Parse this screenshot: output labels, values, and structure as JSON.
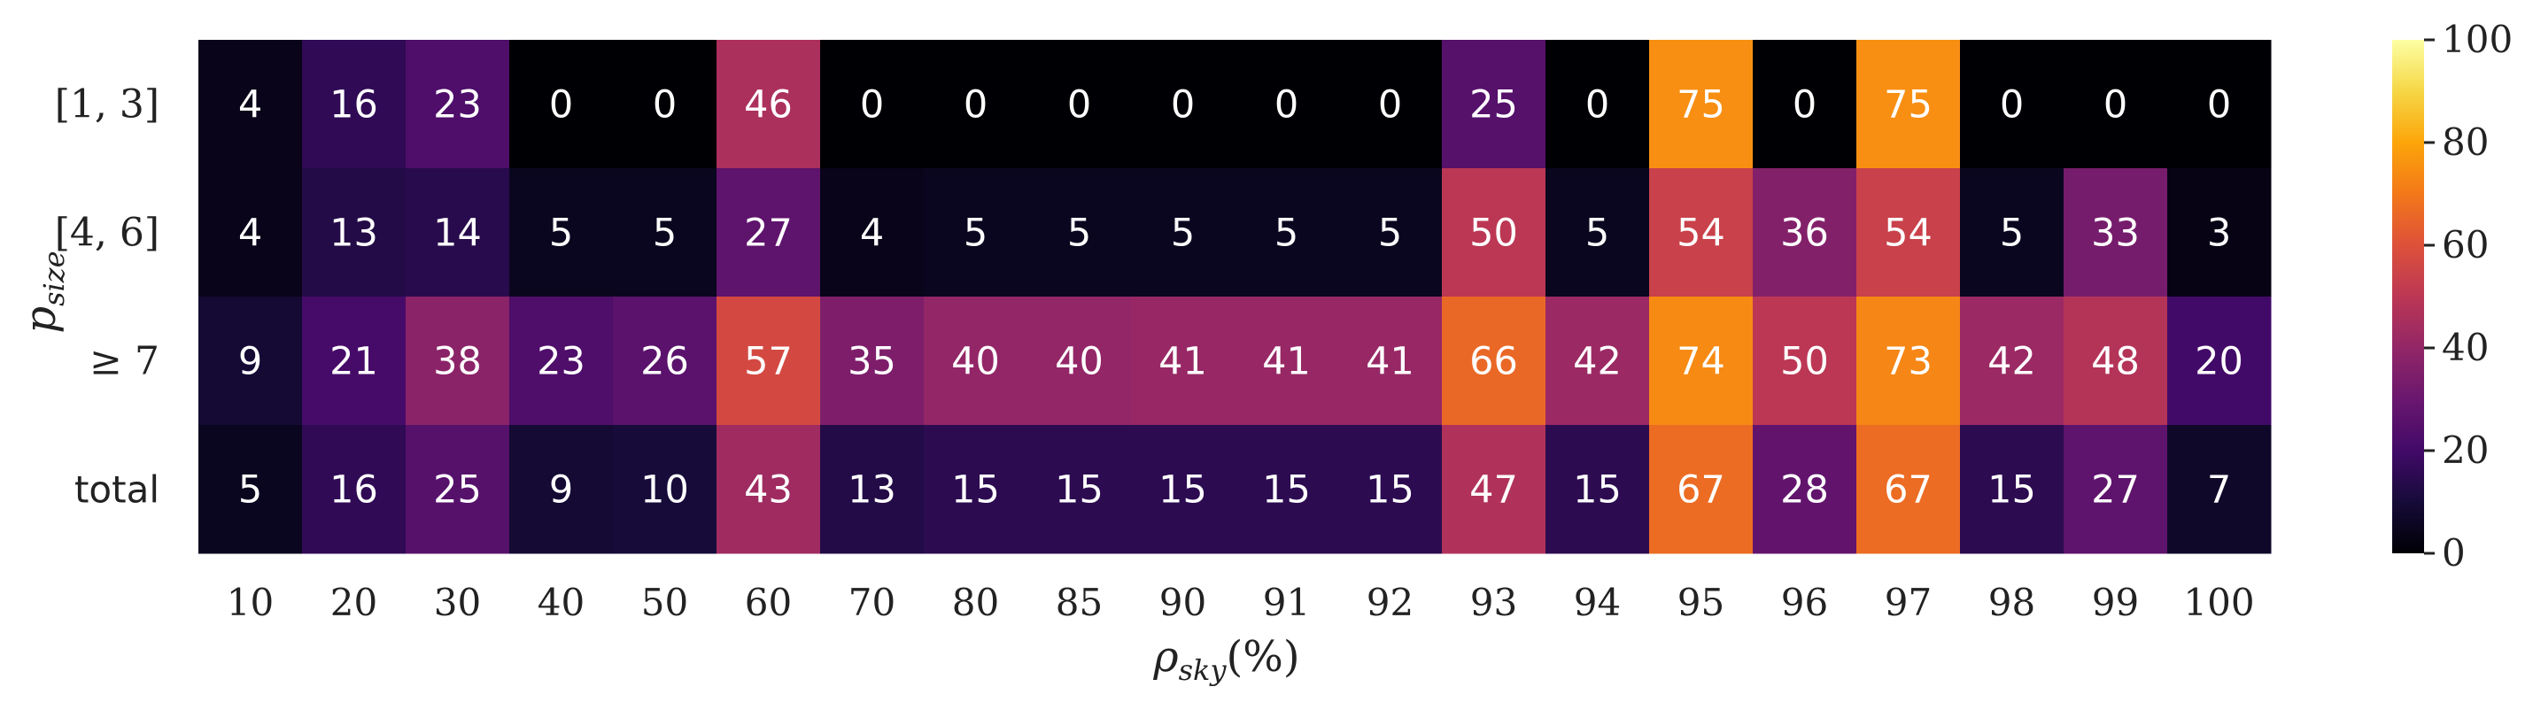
{
  "chart_data": {
    "type": "heatmap",
    "title": "",
    "xlabel": "ρ_sky(%)",
    "ylabel": "p_size",
    "x_categories": [
      "10",
      "20",
      "30",
      "40",
      "50",
      "60",
      "70",
      "80",
      "85",
      "90",
      "91",
      "92",
      "93",
      "94",
      "95",
      "96",
      "97",
      "98",
      "99",
      "100"
    ],
    "y_categories": [
      "[1, 3]",
      "[4, 6]",
      "≥ 7",
      "total"
    ],
    "values": [
      [
        4,
        16,
        23,
        0,
        0,
        46,
        0,
        0,
        0,
        0,
        0,
        0,
        25,
        0,
        75,
        0,
        75,
        0,
        0,
        0
      ],
      [
        4,
        13,
        14,
        5,
        5,
        27,
        4,
        5,
        5,
        5,
        5,
        5,
        50,
        5,
        54,
        36,
        54,
        5,
        33,
        3
      ],
      [
        9,
        21,
        38,
        23,
        26,
        57,
        35,
        40,
        40,
        41,
        41,
        41,
        66,
        42,
        74,
        50,
        73,
        42,
        48,
        20
      ],
      [
        5,
        16,
        25,
        9,
        10,
        43,
        13,
        15,
        15,
        15,
        15,
        15,
        47,
        15,
        67,
        28,
        67,
        15,
        27,
        7
      ]
    ],
    "colorscale": "inferno",
    "vmin": 0,
    "vmax": 100,
    "colorbar_ticks": [
      "0",
      "20",
      "40",
      "60",
      "80",
      "100"
    ]
  }
}
